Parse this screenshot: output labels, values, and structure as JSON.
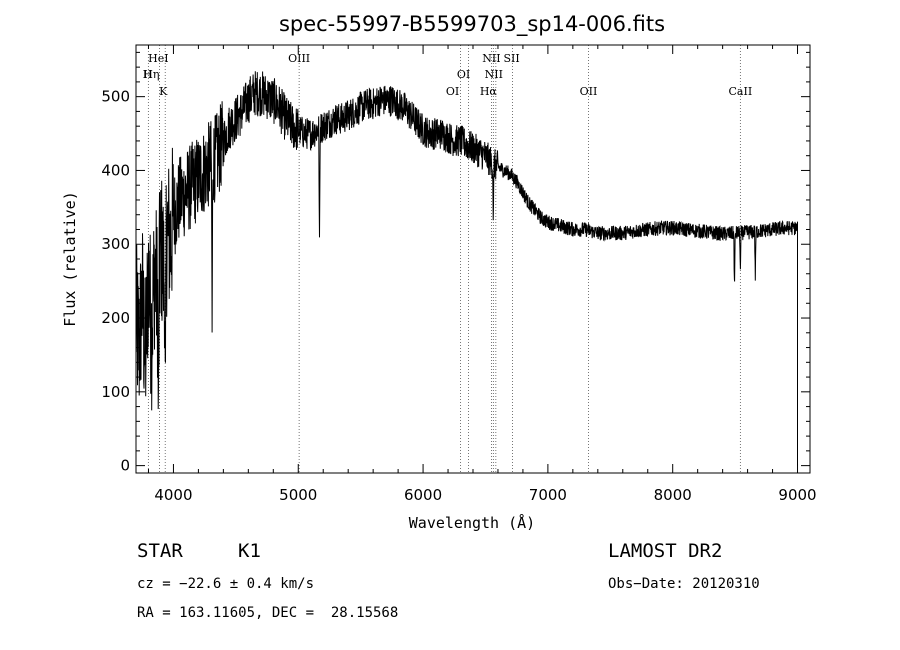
{
  "chart_data": {
    "type": "line",
    "title": "spec-55997-B5599703_sp14-006.fits",
    "xlabel": "Wavelength (Å)",
    "ylabel": "Flux (relative)",
    "xlim": [
      3700,
      9100
    ],
    "ylim": [
      -10,
      570
    ],
    "xticks": [
      4000,
      5000,
      6000,
      7000,
      8000,
      9000
    ],
    "yticks": [
      0,
      100,
      200,
      300,
      400,
      500
    ],
    "grid": false,
    "line_color": "#000000",
    "spectrum": {
      "x": [
        3700,
        3725,
        3750,
        3775,
        3800,
        3825,
        3850,
        3875,
        3900,
        3925,
        3950,
        3975,
        4000,
        4050,
        4100,
        4150,
        4200,
        4250,
        4300,
        4350,
        4400,
        4450,
        4500,
        4550,
        4600,
        4650,
        4700,
        4750,
        4800,
        4850,
        4900,
        4950,
        5000,
        5050,
        5100,
        5150,
        5200,
        5250,
        5300,
        5350,
        5400,
        5450,
        5500,
        5550,
        5600,
        5650,
        5700,
        5750,
        5800,
        5850,
        5900,
        5950,
        6000,
        6050,
        6100,
        6150,
        6200,
        6250,
        6300,
        6350,
        6400,
        6450,
        6500,
        6550,
        6600,
        6650,
        6700,
        6750,
        6800,
        6850,
        6900,
        6950,
        7000,
        7100,
        7200,
        7300,
        7400,
        7500,
        7600,
        7700,
        7800,
        7900,
        8000,
        8100,
        8200,
        8300,
        8400,
        8500,
        8600,
        8700,
        8800,
        8900,
        9000
      ],
      "y": [
        200,
        160,
        230,
        140,
        260,
        180,
        270,
        220,
        300,
        260,
        320,
        300,
        340,
        360,
        370,
        380,
        390,
        400,
        410,
        420,
        440,
        460,
        470,
        480,
        495,
        505,
        505,
        500,
        495,
        485,
        470,
        460,
        455,
        450,
        450,
        455,
        460,
        465,
        470,
        470,
        475,
        480,
        485,
        490,
        490,
        495,
        495,
        495,
        490,
        485,
        475,
        465,
        455,
        450,
        450,
        450,
        445,
        440,
        440,
        435,
        430,
        425,
        420,
        410,
        405,
        400,
        395,
        385,
        370,
        355,
        345,
        335,
        330,
        325,
        320,
        320,
        315,
        315,
        315,
        318,
        320,
        322,
        322,
        320,
        318,
        316,
        314,
        315,
        316,
        318,
        320,
        322,
        322
      ]
    },
    "absorption_dips": [
      {
        "x": 3880,
        "y": 40
      },
      {
        "x": 3935,
        "y": 30
      },
      {
        "x": 4310,
        "y": 180
      },
      {
        "x": 5170,
        "y": 290
      },
      {
        "x": 6563,
        "y": 330
      },
      {
        "x": 8495,
        "y": 235
      },
      {
        "x": 8542,
        "y": 260
      },
      {
        "x": 8662,
        "y": 255
      }
    ],
    "emission_lines": [
      {
        "x": 3799,
        "labels": [
          "HeI",
          "Hη"
        ]
      },
      {
        "x": 3889,
        "labels": [
          "H"
        ]
      },
      {
        "x": 3934,
        "labels": [
          "K"
        ]
      },
      {
        "x": 5007,
        "labels": [
          "OIII"
        ]
      },
      {
        "x": 6300,
        "labels": [
          "OI"
        ]
      },
      {
        "x": 6364,
        "labels": [
          "OI"
        ]
      },
      {
        "x": 6548,
        "labels": [
          "NII"
        ]
      },
      {
        "x": 6563,
        "labels": [
          "Hα"
        ]
      },
      {
        "x": 6583,
        "labels": [
          "NII"
        ]
      },
      {
        "x": 6717,
        "labels": [
          "SII"
        ]
      },
      {
        "x": 7325,
        "labels": [
          "OII"
        ]
      },
      {
        "x": 8542,
        "labels": [
          "CaII"
        ]
      }
    ]
  },
  "info": {
    "object_type": "STAR",
    "subclass": "K1",
    "survey": "LAMOST DR2",
    "redshift": "cz = −22.6 ± 0.4 km/s",
    "obs_date": "Obs−Date: 20120310",
    "coords": "RA = 163.11605, DEC =  28.15568"
  }
}
